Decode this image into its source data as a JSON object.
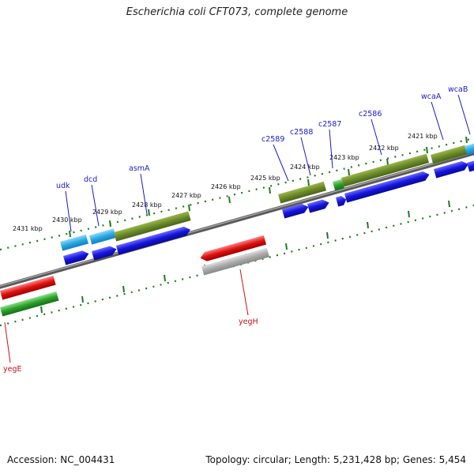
{
  "title": "Escherichia coli CFT073, complete genome",
  "footer": {
    "accession": "Accession: NC_004431",
    "summary": "Topology: circular; Length: 5,231,428 bp; Genes: 5,454"
  },
  "colors": {
    "backbone": "#7a7a7a",
    "tick": "#1f7a1f",
    "gene_label_forward": "#1a1acc",
    "gene_label_reverse": "#cc1111",
    "cds_forward": "#1414e0",
    "gene_forward": "#6b8a2a",
    "rna_light_blue": "#2aa8e0",
    "gene_reverse": "#dd1111",
    "gene_reverse_green": "#2aa02a",
    "pseudo_grey": "#aaaaaa"
  },
  "scale_labels": [
    {
      "text": "2431 kbp"
    },
    {
      "text": "2430 kbp"
    },
    {
      "text": "2429 kbp"
    },
    {
      "text": "2428 kbp"
    },
    {
      "text": "2427 kbp"
    },
    {
      "text": "2426 kbp"
    },
    {
      "text": "2425 kbp"
    },
    {
      "text": "2424 kbp"
    },
    {
      "text": "2423 kbp"
    },
    {
      "text": "2422 kbp"
    },
    {
      "text": "2421 kbp"
    }
  ],
  "gene_labels": [
    {
      "text": "udk",
      "strand": "forward"
    },
    {
      "text": "dcd",
      "strand": "forward"
    },
    {
      "text": "asmA",
      "strand": "forward"
    },
    {
      "text": "c2589",
      "strand": "forward"
    },
    {
      "text": "c2588",
      "strand": "forward"
    },
    {
      "text": "c2587",
      "strand": "forward"
    },
    {
      "text": "c2586",
      "strand": "forward"
    },
    {
      "text": "wcaA",
      "strand": "forward"
    },
    {
      "text": "wcaB",
      "strand": "forward"
    },
    {
      "text": "yegH",
      "strand": "reverse"
    },
    {
      "text": "yegE",
      "strand": "reverse"
    }
  ]
}
